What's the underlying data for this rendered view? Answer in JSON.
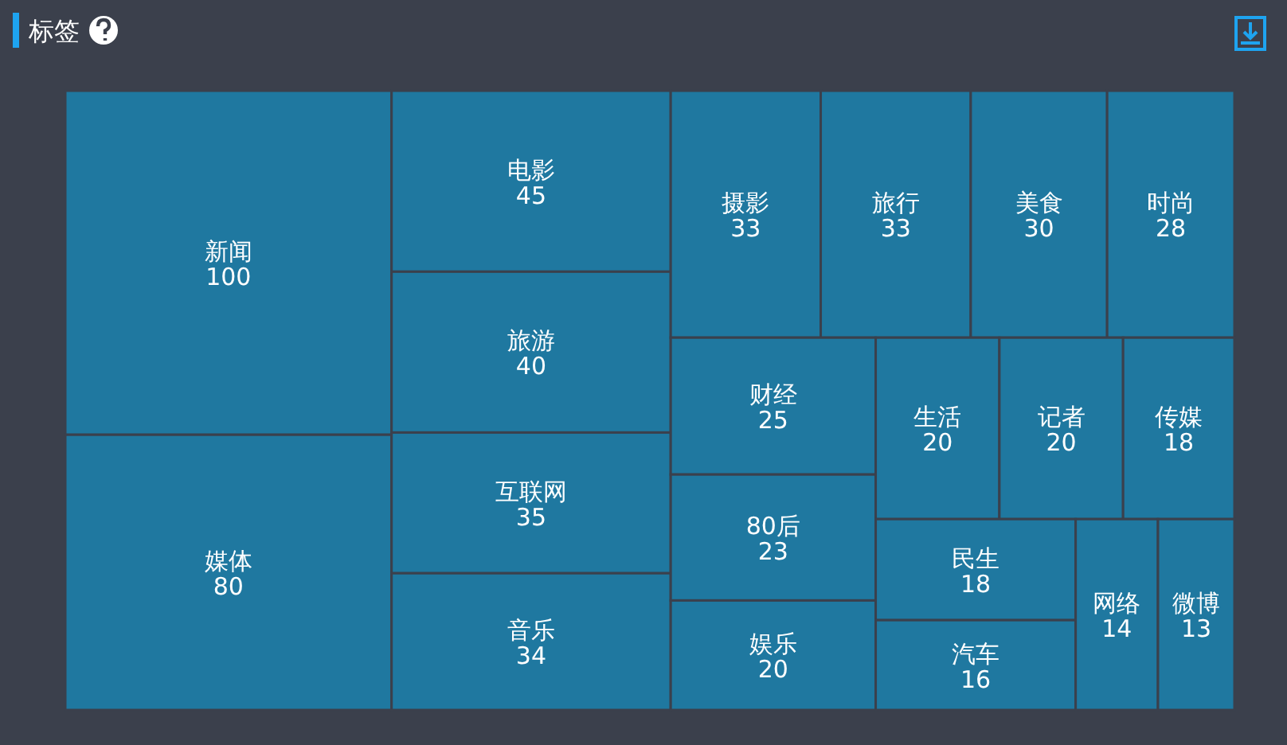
{
  "chart_data": {
    "type": "other",
    "title": "标签",
    "categories": [
      "新闻",
      "媒体",
      "电影",
      "旅游",
      "互联网",
      "音乐",
      "摄影",
      "旅行",
      "美食",
      "时尚",
      "财经",
      "80后",
      "娱乐",
      "生活",
      "记者",
      "传媒",
      "民生",
      "汽车",
      "网络",
      "微博"
    ],
    "values": [
      100,
      80,
      45,
      40,
      35,
      34,
      33,
      33,
      30,
      28,
      25,
      23,
      20,
      20,
      20,
      18,
      18,
      16,
      14,
      13
    ],
    "color": "#1f78a0",
    "data_labels": true
  }
}
